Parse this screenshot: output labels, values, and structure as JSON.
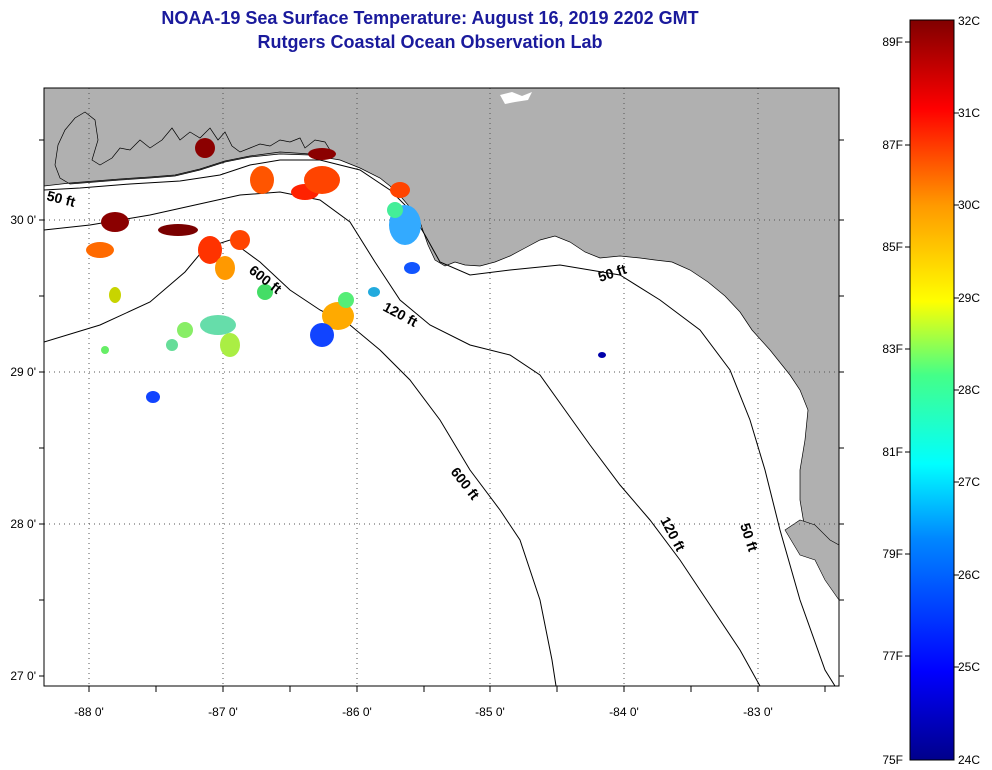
{
  "title": "NOAA-19 Sea Surface Temperature:  August 16, 2019 2202 GMT",
  "subtitle": "Rutgers Coastal Ocean Observation Lab",
  "lat_ticks": [
    "30 0'",
    "29 0'",
    "28 0'",
    "27 0'"
  ],
  "lon_ticks": [
    "-88 0'",
    "-87 0'",
    "-86 0'",
    "-85 0'",
    "-84 0'",
    "-83 0'"
  ],
  "isobaths": {
    "a": "50 ft",
    "b": "600 ft",
    "c": "120 ft",
    "d": "50 ft",
    "e": "600 ft",
    "f": "120 ft",
    "g": "50 ft"
  },
  "colorbar": {
    "celsius": [
      "32C",
      "31C",
      "30C",
      "29C",
      "28C",
      "27C",
      "26C",
      "25C",
      "24C"
    ],
    "fahrenheit": [
      "89F",
      "87F",
      "85F",
      "83F",
      "81F",
      "79F",
      "77F",
      "75F"
    ]
  },
  "colors": {
    "title": "#1a1a9c",
    "land": "#b0b0b0"
  }
}
